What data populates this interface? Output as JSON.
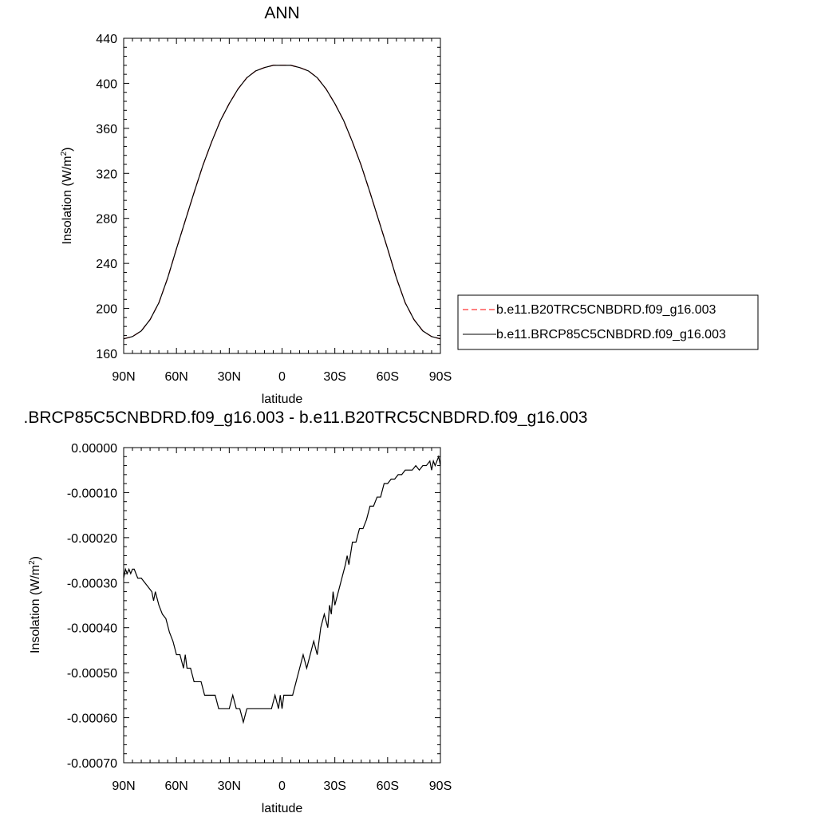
{
  "chart_data": [
    {
      "type": "line",
      "title": "ANN",
      "xlabel": "latitude",
      "ylabel": "Insolation (W/m",
      "ylabel_sup": "2",
      "ylabel_end": ")",
      "xlim": [
        90,
        -90
      ],
      "ylim": [
        160,
        440
      ],
      "xticks": [
        {
          "value": 90,
          "label": "90N"
        },
        {
          "value": 60,
          "label": "60N"
        },
        {
          "value": 30,
          "label": "30N"
        },
        {
          "value": 0,
          "label": "0"
        },
        {
          "value": -30,
          "label": "30S"
        },
        {
          "value": -60,
          "label": "60S"
        },
        {
          "value": -90,
          "label": "90S"
        }
      ],
      "yticks": [
        {
          "value": 160,
          "label": "160"
        },
        {
          "value": 200,
          "label": "200"
        },
        {
          "value": 240,
          "label": "240"
        },
        {
          "value": 280,
          "label": "280"
        },
        {
          "value": 320,
          "label": "320"
        },
        {
          "value": 360,
          "label": "360"
        },
        {
          "value": 400,
          "label": "400"
        },
        {
          "value": 440,
          "label": "440"
        }
      ],
      "legend": "outside-right",
      "x": [
        90,
        85,
        80,
        75,
        70,
        65,
        60,
        55,
        50,
        45,
        40,
        35,
        30,
        25,
        20,
        15,
        10,
        5,
        0,
        -5,
        -10,
        -15,
        -20,
        -25,
        -30,
        -35,
        -40,
        -45,
        -50,
        -55,
        -60,
        -65,
        -70,
        -75,
        -80,
        -85,
        -90
      ],
      "series": [
        {
          "name": "b.e11.B20TRC5CNBDRD.f09_g16.003",
          "color": "#ff0000",
          "dash": "dashed",
          "values": [
            173,
            175,
            180,
            190,
            205,
            227,
            253,
            278,
            303,
            327,
            348,
            367,
            382,
            395,
            405,
            411,
            414,
            416,
            416,
            416,
            414,
            411,
            405,
            395,
            382,
            367,
            348,
            327,
            303,
            278,
            253,
            227,
            205,
            190,
            180,
            175,
            173
          ]
        },
        {
          "name": "b.e11.BRCP85C5CNBDRD.f09_g16.003",
          "color": "#000000",
          "dash": "solid",
          "values": [
            173,
            175,
            180,
            190,
            205,
            227,
            253,
            278,
            303,
            327,
            348,
            367,
            382,
            395,
            405,
            411,
            414,
            416,
            416,
            416,
            414,
            411,
            405,
            395,
            382,
            367,
            348,
            327,
            303,
            278,
            253,
            227,
            205,
            190,
            180,
            175,
            173
          ]
        }
      ]
    },
    {
      "type": "line",
      "title": ".BRCP85C5CNBDRD.f09_g16.003 - b.e11.B20TRC5CNBDRD.f09_g16.003",
      "xlabel": "latitude",
      "ylabel": "Insolation (W/m",
      "ylabel_sup": "2",
      "ylabel_end": ")",
      "xlim": [
        90,
        -90
      ],
      "ylim": [
        -0.0007,
        0.0
      ],
      "xticks": [
        {
          "value": 90,
          "label": "90N"
        },
        {
          "value": 60,
          "label": "60N"
        },
        {
          "value": 30,
          "label": "30N"
        },
        {
          "value": 0,
          "label": "0"
        },
        {
          "value": -30,
          "label": "30S"
        },
        {
          "value": -60,
          "label": "60S"
        },
        {
          "value": -90,
          "label": "90S"
        }
      ],
      "yticks": [
        {
          "value": 0.0,
          "label": "0.00000"
        },
        {
          "value": -0.0001,
          "label": "-0.00010"
        },
        {
          "value": -0.0002,
          "label": "-0.00020"
        },
        {
          "value": -0.0003,
          "label": "-0.00030"
        },
        {
          "value": -0.0004,
          "label": "-0.00040"
        },
        {
          "value": -0.0005,
          "label": "-0.00050"
        },
        {
          "value": -0.0006,
          "label": "-0.00060"
        },
        {
          "value": -0.0007,
          "label": "-0.00070"
        }
      ],
      "series": [
        {
          "color": "#000000",
          "dash": "solid",
          "x": [
            90,
            89,
            88,
            87,
            86,
            85,
            84,
            82,
            80,
            78,
            76,
            74,
            73,
            72,
            70,
            68,
            66,
            64,
            62,
            60,
            58,
            56,
            55,
            54,
            52,
            50,
            48,
            46,
            44,
            42,
            40,
            38,
            36,
            34,
            32,
            30,
            28,
            26,
            24,
            22,
            20,
            19,
            18,
            17,
            16,
            15,
            14,
            12,
            10,
            8,
            6,
            4,
            2,
            1,
            0,
            -1,
            -2,
            -3,
            -4,
            -6,
            -8,
            -10,
            -12,
            -14,
            -16,
            -18,
            -20,
            -22,
            -24,
            -26,
            -27,
            -28,
            -29,
            -30,
            -32,
            -34,
            -36,
            -37,
            -38,
            -40,
            -42,
            -44,
            -46,
            -48,
            -50,
            -52,
            -54,
            -56,
            -58,
            -60,
            -62,
            -64,
            -66,
            -68,
            -70,
            -72,
            -74,
            -76,
            -78,
            -80,
            -82,
            -84,
            -85,
            -86,
            -87,
            -88,
            -89,
            -90
          ],
          "values": [
            -0.00029,
            -0.00027,
            -0.00028,
            -0.00027,
            -0.00028,
            -0.00027,
            -0.00027,
            -0.00029,
            -0.00029,
            -0.0003,
            -0.00031,
            -0.00032,
            -0.00034,
            -0.00032,
            -0.00035,
            -0.00037,
            -0.00038,
            -0.00041,
            -0.00043,
            -0.00046,
            -0.00046,
            -0.00049,
            -0.00046,
            -0.00049,
            -0.00049,
            -0.00052,
            -0.00052,
            -0.00052,
            -0.00055,
            -0.00055,
            -0.00055,
            -0.00055,
            -0.00058,
            -0.00058,
            -0.00058,
            -0.00058,
            -0.00055,
            -0.00058,
            -0.00058,
            -0.00061,
            -0.00058,
            -0.00058,
            -0.00058,
            -0.00058,
            -0.00058,
            -0.00058,
            -0.00058,
            -0.00058,
            -0.00058,
            -0.00058,
            -0.00058,
            -0.00055,
            -0.00058,
            -0.00055,
            -0.00058,
            -0.00055,
            -0.00055,
            -0.00055,
            -0.00055,
            -0.00055,
            -0.00052,
            -0.00049,
            -0.00046,
            -0.00049,
            -0.00046,
            -0.00043,
            -0.00046,
            -0.0004,
            -0.00037,
            -0.0004,
            -0.00035,
            -0.00037,
            -0.00032,
            -0.00035,
            -0.00032,
            -0.00029,
            -0.00026,
            -0.00024,
            -0.00026,
            -0.00021,
            -0.00021,
            -0.00018,
            -0.00018,
            -0.00016,
            -0.00013,
            -0.00013,
            -0.00011,
            -0.00011,
            -8e-05,
            -8e-05,
            -7e-05,
            -7e-05,
            -6e-05,
            -6e-05,
            -5e-05,
            -5e-05,
            -5e-05,
            -4e-05,
            -5e-05,
            -4e-05,
            -4e-05,
            -3e-05,
            -5e-05,
            -3e-05,
            -4e-05,
            -3e-05,
            -2e-05,
            -4e-05
          ]
        }
      ]
    }
  ]
}
